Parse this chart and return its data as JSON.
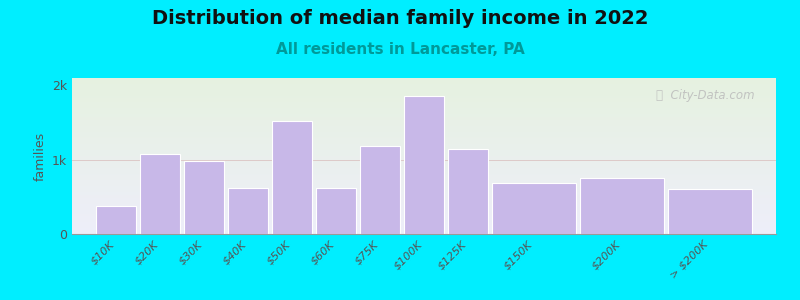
{
  "title": "Distribution of median family income in 2022",
  "subtitle": "All residents in Lancaster, PA",
  "ylabel": "families",
  "categories": [
    "$10K",
    "$20K",
    "$30K",
    "$40K",
    "$50K",
    "$60K",
    "$75K",
    "$100K",
    "$125K",
    "$150K",
    "$200K",
    "> $200K"
  ],
  "values": [
    380,
    1080,
    980,
    620,
    1520,
    620,
    1180,
    1860,
    1150,
    680,
    760,
    600
  ],
  "bar_color": "#c8b8e8",
  "bar_edgecolor": "#ffffff",
  "background_color": "#00eeff",
  "plot_bg_top": "#e6f2e0",
  "plot_bg_bottom": "#eeeeff",
  "title_fontsize": 14,
  "subtitle_fontsize": 11,
  "subtitle_color": "#009999",
  "ylabel_fontsize": 9,
  "ytick_labels": [
    "0",
    "1k",
    "2k"
  ],
  "ytick_values": [
    0,
    1000,
    2000
  ],
  "ylim": [
    0,
    2100
  ],
  "watermark": "ⓘ  City-Data.com",
  "bar_widths": [
    1,
    1,
    1,
    1,
    1,
    1,
    1,
    1,
    1,
    2,
    2,
    2
  ],
  "bar_lefts": [
    0,
    1,
    2,
    3,
    4,
    5,
    6,
    7,
    8,
    9,
    11,
    13
  ],
  "total_width": 15
}
